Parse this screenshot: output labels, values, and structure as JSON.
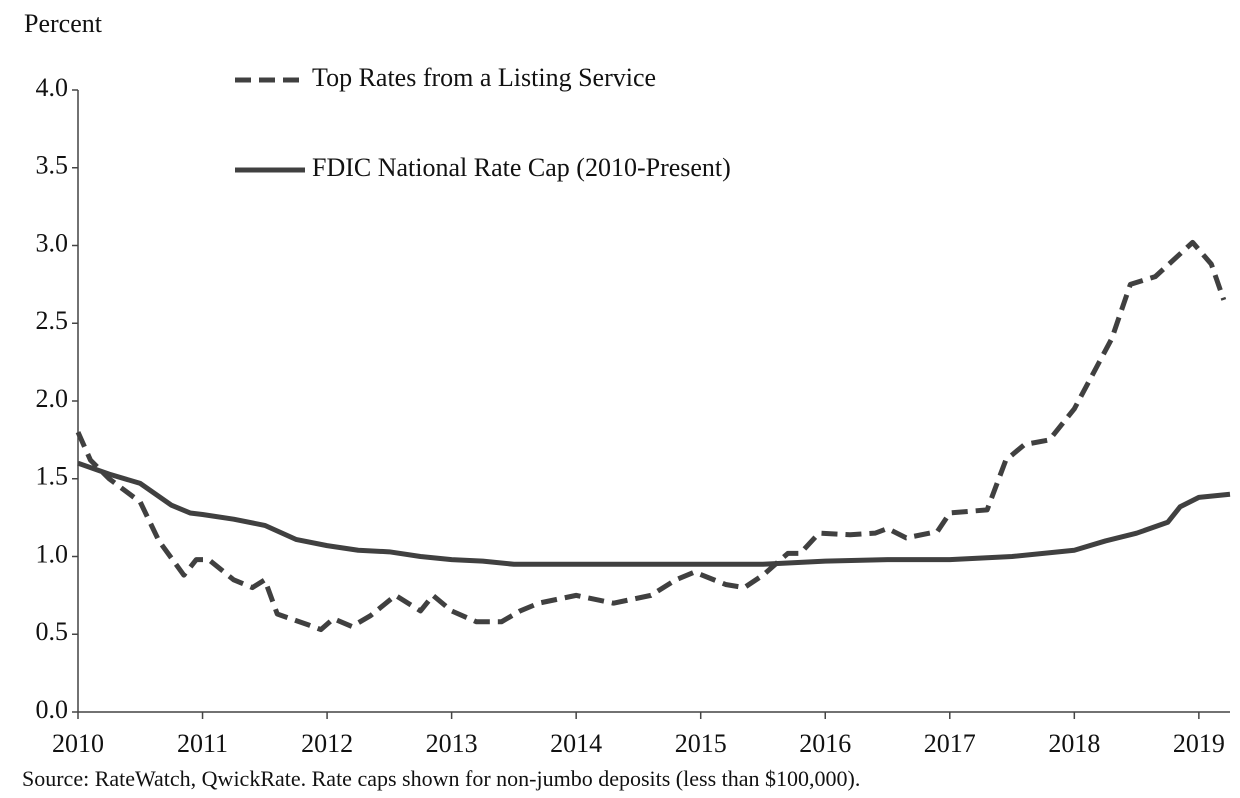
{
  "chart_data": {
    "type": "line",
    "y_label": "Percent",
    "note": "Source: RateWatch, QwickRate. Rate caps shown for non-jumbo  deposits (less than $100,000).",
    "xlim": [
      2010,
      2019.25
    ],
    "xticks": [
      2010,
      2011,
      2012,
      2013,
      2014,
      2015,
      2016,
      2017,
      2018,
      2019
    ],
    "ylim": [
      0,
      4
    ],
    "yticks": [
      {
        "value": 0,
        "label": "0.0"
      },
      {
        "value": 0.5,
        "label": "0.5"
      },
      {
        "value": 1,
        "label": "1.0"
      },
      {
        "value": 1.5,
        "label": "1.5"
      },
      {
        "value": 2,
        "label": "2.0"
      },
      {
        "value": 2.5,
        "label": "2.5"
      },
      {
        "value": 3,
        "label": "3.0"
      },
      {
        "value": 3.5,
        "label": "3.5"
      },
      {
        "value": 4,
        "label": "4.0"
      }
    ],
    "grid": false,
    "series": [
      {
        "name": "Top Rates from a Listing Service",
        "color": "#404040",
        "dash": true,
        "x": [
          2010.0,
          2010.1,
          2010.25,
          2010.5,
          2010.65,
          2010.85,
          2010.95,
          2011.05,
          2011.25,
          2011.4,
          2011.5,
          2011.6,
          2011.85,
          2011.95,
          2012.05,
          2012.2,
          2012.35,
          2012.55,
          2012.75,
          2012.85,
          2013.0,
          2013.2,
          2013.4,
          2013.55,
          2013.7,
          2014.0,
          2014.3,
          2014.6,
          2014.8,
          2014.95,
          2015.2,
          2015.35,
          2015.5,
          2015.7,
          2015.8,
          2015.95,
          2016.2,
          2016.4,
          2016.5,
          2016.65,
          2016.9,
          2017.0,
          2017.3,
          2017.45,
          2017.6,
          2017.8,
          2018.0,
          2018.2,
          2018.3,
          2018.45,
          2018.65,
          2018.95,
          2019.1,
          2019.2
        ],
        "values": [
          1.8,
          1.62,
          1.5,
          1.35,
          1.1,
          0.88,
          0.98,
          0.98,
          0.85,
          0.8,
          0.85,
          0.63,
          0.56,
          0.53,
          0.6,
          0.55,
          0.62,
          0.75,
          0.65,
          0.75,
          0.65,
          0.58,
          0.58,
          0.65,
          0.7,
          0.75,
          0.7,
          0.75,
          0.85,
          0.9,
          0.82,
          0.8,
          0.88,
          1.02,
          1.02,
          1.15,
          1.14,
          1.15,
          1.18,
          1.12,
          1.16,
          1.28,
          1.3,
          1.62,
          1.72,
          1.75,
          1.95,
          2.25,
          2.4,
          2.75,
          2.8,
          3.02,
          2.88,
          2.65
        ]
      },
      {
        "name": "FDIC National Rate Cap (2010-Present)",
        "color": "#404040",
        "dash": false,
        "x": [
          2010.0,
          2010.25,
          2010.5,
          2010.75,
          2010.9,
          2011.0,
          2011.25,
          2011.5,
          2011.75,
          2012.0,
          2012.25,
          2012.5,
          2012.75,
          2013.0,
          2013.25,
          2013.5,
          2014.0,
          2014.5,
          2015.0,
          2015.5,
          2016.0,
          2016.5,
          2017.0,
          2017.5,
          2018.0,
          2018.25,
          2018.5,
          2018.75,
          2018.85,
          2019.0,
          2019.25
        ],
        "values": [
          1.6,
          1.53,
          1.47,
          1.33,
          1.28,
          1.27,
          1.24,
          1.2,
          1.11,
          1.07,
          1.04,
          1.03,
          1.0,
          0.98,
          0.97,
          0.95,
          0.95,
          0.95,
          0.95,
          0.95,
          0.97,
          0.98,
          0.98,
          1.0,
          1.04,
          1.1,
          1.15,
          1.22,
          1.32,
          1.38,
          1.4
        ]
      }
    ]
  }
}
